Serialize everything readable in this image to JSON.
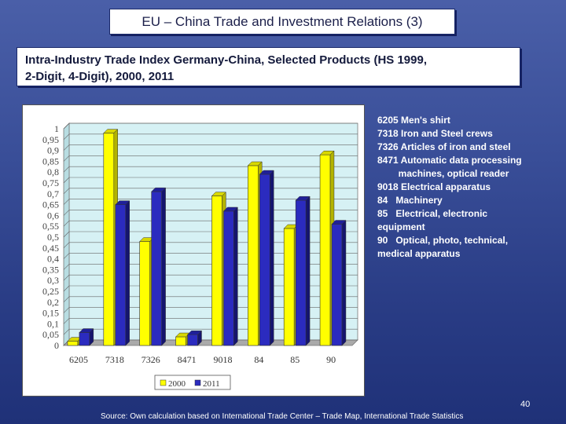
{
  "slide": {
    "title": "EU – China Trade and Investment Relations (3)",
    "subtitle_line1": "Intra-Industry Trade Index Germany-China, Selected Products (HS 1999,",
    "subtitle_line2": "2-Digit, 4-Digit), 2000, 2011",
    "page_number": "40",
    "source": "Source: Own calculation based on International Trade Center – Trade Map, International Trade   Statistics"
  },
  "product_legend": [
    "6205 Men's shirt",
    "7318 Iron and Steel crews",
    "7326 Articles of iron and steel",
    "8471 Automatic data processing",
    "        machines, optical reader",
    "9018 Electrical apparatus",
    "84   Machinery",
    "85   Electrical, electronic",
    "equipment",
    "90   Optical, photo, technical,",
    "medical apparatus"
  ],
  "chart_data": {
    "type": "bar",
    "categories": [
      "6205",
      "7318",
      "7326",
      "8471",
      "9018",
      "84",
      "85",
      "90"
    ],
    "series": [
      {
        "name": "2000",
        "values": [
          0.02,
          0.98,
          0.48,
          0.04,
          0.69,
          0.83,
          0.54,
          0.88
        ],
        "color": "#ffff00"
      },
      {
        "name": "2011",
        "values": [
          0.06,
          0.65,
          0.71,
          0.05,
          0.62,
          0.79,
          0.67,
          0.56
        ],
        "color": "#2b2bbf"
      }
    ],
    "ylim": [
      0,
      1
    ],
    "yticks": [
      "0",
      "0,05",
      "0,1",
      "0,15",
      "0,2",
      "0,25",
      "0,3",
      "0,35",
      "0,4",
      "0,45",
      "0,5",
      "0,55",
      "0,6",
      "0,65",
      "0,7",
      "0,75",
      "0,8",
      "0,85",
      "0,9",
      "0,95",
      "1"
    ],
    "grid": true,
    "legend_position": "bottom",
    "plot_background": "#d6f1f4"
  }
}
